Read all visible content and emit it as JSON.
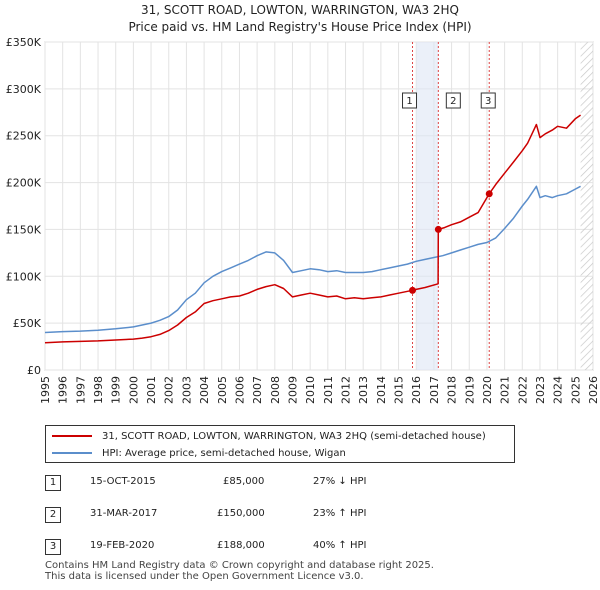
{
  "chart_data": {
    "type": "line",
    "title": "31, SCOTT ROAD, LOWTON, WARRINGTON, WA3 2HQ",
    "subtitle": "Price paid vs. HM Land Registry's House Price Index (HPI)",
    "xlabel": "",
    "ylabel": "",
    "xlim": [
      1995,
      2026
    ],
    "ylim": [
      0,
      350000
    ],
    "x_ticks": [
      "1995",
      "1996",
      "1997",
      "1998",
      "1999",
      "2000",
      "2001",
      "2002",
      "2003",
      "2004",
      "2005",
      "2006",
      "2007",
      "2008",
      "2009",
      "2010",
      "2011",
      "2012",
      "2013",
      "2014",
      "2015",
      "2016",
      "2017",
      "2018",
      "2019",
      "2020",
      "2021",
      "2022",
      "2023",
      "2024",
      "2025",
      "2026"
    ],
    "y_ticks": [
      {
        "value": 0,
        "label": "£0"
      },
      {
        "value": 50000,
        "label": "£50K"
      },
      {
        "value": 100000,
        "label": "£100K"
      },
      {
        "value": 150000,
        "label": "£150K"
      },
      {
        "value": 200000,
        "label": "£200K"
      },
      {
        "value": 250000,
        "label": "£250K"
      },
      {
        "value": 300000,
        "label": "£300K"
      },
      {
        "value": 350000,
        "label": "£350K"
      }
    ],
    "grid": true,
    "series": [
      {
        "name": "31, SCOTT ROAD, LOWTON, WARRINGTON, WA3 2HQ (semi-detached house)",
        "color": "#cc0000",
        "x": [
          1995,
          1996,
          1997,
          1998,
          1999,
          2000,
          2000.5,
          2001,
          2001.5,
          2002,
          2002.5,
          2003,
          2003.5,
          2004,
          2004.5,
          2005,
          2005.5,
          2006,
          2006.5,
          2007,
          2007.5,
          2008,
          2008.5,
          2009,
          2009.5,
          2010,
          2010.5,
          2011,
          2011.5,
          2012,
          2012.5,
          2013,
          2013.5,
          2014,
          2014.5,
          2015,
          2015.79,
          2016,
          2016.5,
          2017.24,
          2017.25,
          2017.6,
          2018,
          2018.5,
          2019,
          2019.5,
          2020.13,
          2020.5,
          2021,
          2021.5,
          2022,
          2022.3,
          2022.8,
          2023,
          2023.3,
          2023.7,
          2024,
          2024.5,
          2025,
          2025.3
        ],
        "values": [
          29000,
          30000,
          30500,
          31000,
          32000,
          33000,
          34000,
          35500,
          38000,
          42000,
          48000,
          56000,
          62000,
          71000,
          74000,
          76000,
          78000,
          79000,
          82000,
          86000,
          89000,
          91000,
          87000,
          78000,
          80000,
          82000,
          80000,
          78000,
          79000,
          76000,
          77000,
          76000,
          77000,
          78000,
          80000,
          82000,
          85000,
          86000,
          88000,
          92000,
          150000,
          152000,
          155000,
          158000,
          163000,
          168000,
          188000,
          198000,
          210000,
          222000,
          234000,
          242000,
          262000,
          248000,
          252000,
          256000,
          260000,
          258000,
          268000,
          272000
        ]
      },
      {
        "name": "HPI: Average price, semi-detached house, Wigan",
        "color": "#5b8ecb",
        "x": [
          1995,
          1996,
          1997,
          1998,
          1999,
          2000,
          2000.5,
          2001,
          2001.5,
          2002,
          2002.5,
          2003,
          2003.5,
          2004,
          2004.5,
          2005,
          2005.5,
          2006,
          2006.5,
          2007,
          2007.5,
          2008,
          2008.5,
          2009,
          2009.5,
          2010,
          2010.5,
          2011,
          2011.5,
          2012,
          2012.5,
          2013,
          2013.5,
          2014,
          2014.5,
          2015,
          2015.5,
          2016,
          2016.5,
          2017,
          2017.5,
          2018,
          2018.5,
          2019,
          2019.5,
          2020,
          2020.5,
          2021,
          2021.5,
          2022,
          2022.3,
          2022.8,
          2023,
          2023.3,
          2023.7,
          2024,
          2024.5,
          2025,
          2025.3
        ],
        "values": [
          40000,
          41000,
          41500,
          42500,
          44000,
          46000,
          48000,
          50000,
          53000,
          57000,
          64000,
          75000,
          82000,
          93000,
          100000,
          105000,
          109000,
          113000,
          117000,
          122000,
          126000,
          125000,
          117000,
          104000,
          106000,
          108000,
          107000,
          105000,
          106000,
          104000,
          104000,
          104000,
          105000,
          107000,
          109000,
          111000,
          113000,
          116000,
          118000,
          120000,
          122000,
          125000,
          128000,
          131000,
          134000,
          136000,
          141000,
          151000,
          162000,
          175000,
          182000,
          196000,
          184000,
          186000,
          184000,
          186000,
          188000,
          193000,
          196000
        ]
      }
    ],
    "sales": [
      {
        "n": "1",
        "x": 2015.79,
        "value": 85000,
        "date": "15-OCT-2015",
        "price": "£85,000",
        "hpi": "27% ↓ HPI"
      },
      {
        "n": "2",
        "x": 2017.25,
        "value": 150000,
        "date": "31-MAR-2017",
        "price": "£150,000",
        "hpi": "23% ↑ HPI"
      },
      {
        "n": "3",
        "x": 2020.13,
        "value": 188000,
        "date": "19-FEB-2020",
        "price": "£188,000",
        "hpi": "40% ↑ HPI"
      }
    ],
    "shaded_span": [
      2016.0,
      2017.25
    ],
    "forecast_from": 2025.3
  },
  "footer": {
    "line1": "Contains HM Land Registry data © Crown copyright and database right 2025.",
    "line2": "This data is licensed under the Open Government Licence v3.0."
  }
}
